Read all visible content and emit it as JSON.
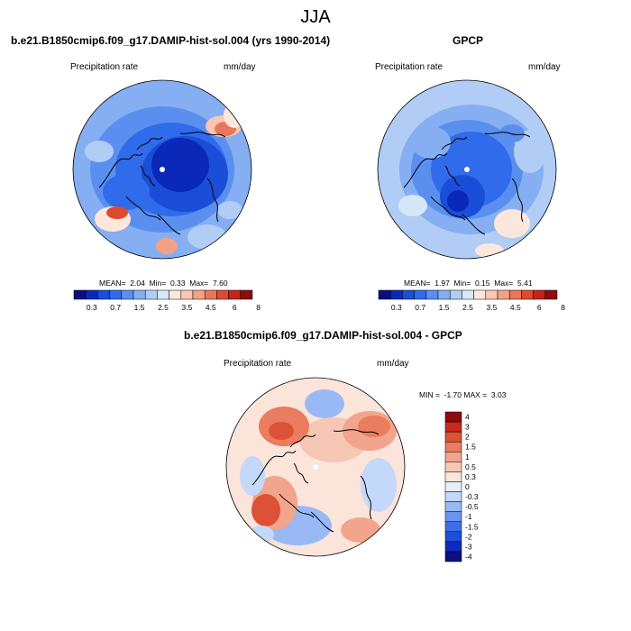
{
  "figure": {
    "title": "JJA",
    "colors": {
      "abs_scale": [
        "#08107a",
        "#0a29b8",
        "#1a4ed8",
        "#2f6bea",
        "#5a8ff0",
        "#86aef2",
        "#b1cdf5",
        "#d7e7fa",
        "#fde7dc",
        "#f9c6b0",
        "#f3a185",
        "#ea765b",
        "#dd4a30",
        "#c4231a",
        "#8e0c0c"
      ],
      "diff_scale": [
        "#0b0f80",
        "#0d2bbf",
        "#1f4fd9",
        "#3f6fe6",
        "#6a94ef",
        "#98b9f5",
        "#c4d8fa",
        "#e6eefb",
        "#fbe4da",
        "#f7c7b5",
        "#f2a48c",
        "#ea7c5f",
        "#dd5136",
        "#c9291a",
        "#8e0c0c"
      ],
      "coast": "#000000"
    }
  },
  "chart_data": [
    {
      "type": "heatmap",
      "projection": "north polar stereographic",
      "title": "b.e21.B1850cmip6.f09_g17.DAMIP-hist-sol.004 (yrs 1990-2014)",
      "variable": "Precipitation rate",
      "units": "mm/day",
      "stats": {
        "mean_label": "MEAN=",
        "mean": "2.04",
        "min_label": "Min=",
        "min": "0.33",
        "max_label": "Max=",
        "max": "7.60"
      },
      "colorbar": {
        "levels": [
          "0.3",
          "0.7",
          "1.5",
          "2.5",
          "3.5",
          "4.5",
          "6",
          "8"
        ]
      }
    },
    {
      "type": "heatmap",
      "projection": "north polar stereographic",
      "title": "GPCP",
      "variable": "Precipitation rate",
      "units": "mm/day",
      "stats": {
        "mean_label": "MEAN=",
        "mean": "1.97",
        "min_label": "Min=",
        "min": "0.15",
        "max_label": "Max=",
        "max": "5.41"
      },
      "colorbar": {
        "levels": [
          "0.3",
          "0.7",
          "1.5",
          "2.5",
          "3.5",
          "4.5",
          "6",
          "8"
        ]
      }
    },
    {
      "type": "heatmap",
      "projection": "north polar stereographic",
      "title": "b.e21.B1850cmip6.f09_g17.DAMIP-hist-sol.004 - GPCP",
      "variable": "Precipitation rate",
      "units": "mm/day",
      "stats": {
        "min_label": "MIN =",
        "min": "-1.70",
        "max_label": "MAX =",
        "max": "3.03"
      },
      "colorbar": {
        "levels": [
          "4",
          "3",
          "2",
          "1.5",
          "1",
          "0.5",
          "0.3",
          "0",
          "-0.3",
          "-0.5",
          "-1",
          "-1.5",
          "-2",
          "-3",
          "-4"
        ]
      }
    }
  ]
}
